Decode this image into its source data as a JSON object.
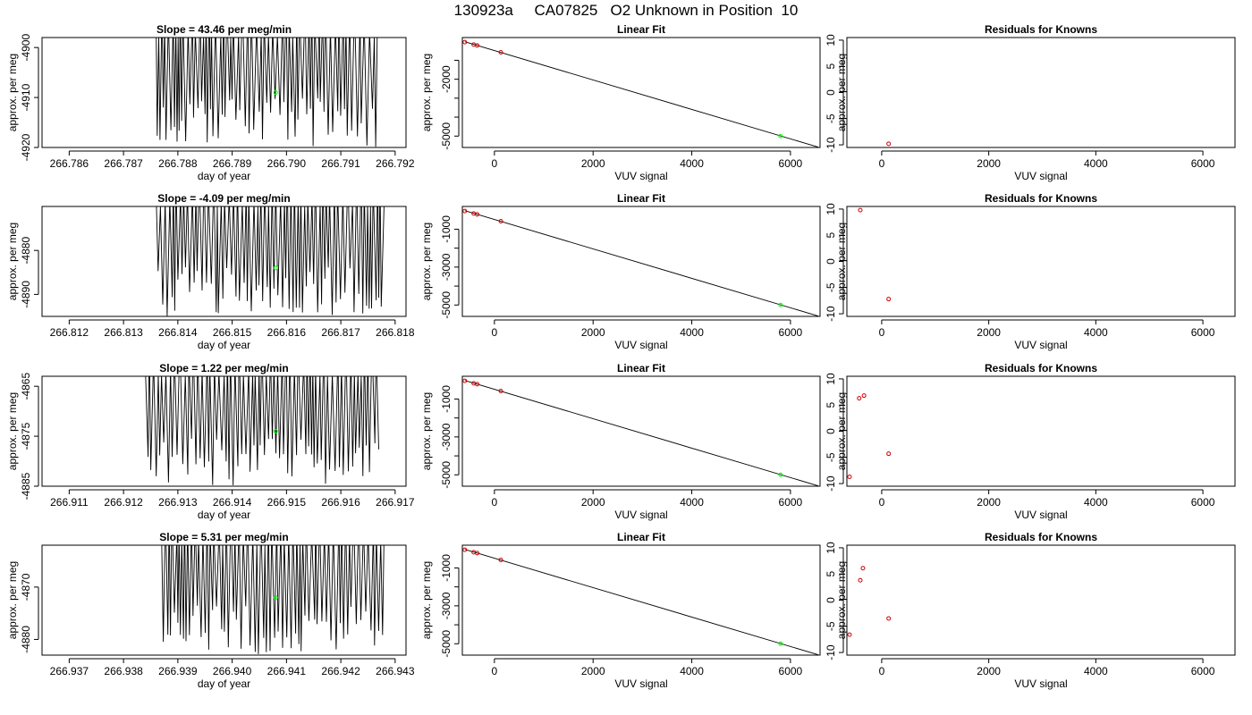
{
  "title": "130923a     CA07825   O2 Unknown in Position  10",
  "colors": {
    "axis": "#000000",
    "line": "#000000",
    "unknown_point": "#00ff00",
    "known_point": "#cc0000"
  },
  "chart_data": [
    {
      "type": "line",
      "title": "Slope =  43.46  per meg/min",
      "xlabel": "day of year",
      "ylabel": "approx. per meg",
      "xlim": [
        266.7855,
        266.7922
      ],
      "ylim": [
        -4920,
        -4898
      ],
      "xticks": [
        "266.786",
        "266.787",
        "266.788",
        "266.789",
        "266.790",
        "266.791",
        "266.792"
      ],
      "xtick_values": [
        266.786,
        266.787,
        266.788,
        266.789,
        266.79,
        266.791,
        266.792
      ],
      "yticks": [
        "-4920",
        "-4910",
        "-4900"
      ],
      "ytick_values": [
        -4920,
        -4910,
        -4900
      ],
      "trace_x_range": [
        266.7876,
        266.7917
      ],
      "trace_y_range": [
        -4920,
        -4898
      ],
      "trace_note": "dense oscillating signal",
      "unknown_point": {
        "x": 266.7898,
        "y": -4909
      }
    },
    {
      "type": "scatter",
      "title": "Linear Fit",
      "xlabel": "VUV signal",
      "ylabel": "approx. per meg",
      "xlim": [
        -650,
        6600
      ],
      "ylim": [
        -5600,
        200
      ],
      "xticks": [
        "0",
        "2000",
        "4000",
        "6000"
      ],
      "xtick_values": [
        0,
        2000,
        4000,
        6000
      ],
      "yticks": [
        "-2000",
        "-5000"
      ],
      "ytick_values": [
        -2000,
        -5000
      ],
      "minor_yticks": [
        -1000,
        -3000,
        -4000
      ],
      "fit_line": {
        "x": [
          -600,
          6560
        ],
        "y": [
          -20,
          -5580
        ]
      },
      "known_points": {
        "x": [
          -600,
          -420,
          -350,
          130
        ],
        "y": [
          -40,
          -170,
          -220,
          -580
        ]
      },
      "unknown_point": {
        "x": 5800,
        "y": -5000
      }
    },
    {
      "type": "scatter",
      "title": "Residuals for Knowns",
      "xlabel": "VUV signal",
      "ylabel": "approx. per meg",
      "xlim": [
        -650,
        6600
      ],
      "ylim": [
        -10.5,
        10.5
      ],
      "xticks": [
        "0",
        "2000",
        "4000",
        "6000"
      ],
      "xtick_values": [
        0,
        2000,
        4000,
        6000
      ],
      "yticks": [
        "-10",
        "-5",
        "0",
        "5",
        "10"
      ],
      "ytick_values": [
        -10,
        -5,
        0,
        5,
        10
      ],
      "known_points": {
        "x": [
          130
        ],
        "y": [
          -9.8
        ]
      }
    },
    {
      "type": "line",
      "title": "Slope =  -4.09  per meg/min",
      "xlabel": "day of year",
      "ylabel": "approx. per meg",
      "xlim": [
        266.8115,
        266.8182
      ],
      "ylim": [
        -4895,
        -4870
      ],
      "xticks": [
        "266.812",
        "266.813",
        "266.814",
        "266.815",
        "266.816",
        "266.817",
        "266.818"
      ],
      "xtick_values": [
        266.812,
        266.813,
        266.814,
        266.815,
        266.816,
        266.817,
        266.818
      ],
      "yticks": [
        "-4880",
        "-4890"
      ],
      "ytick_values": [
        -4880,
        -4890
      ],
      "trace_x_range": [
        266.8136,
        266.8178
      ],
      "trace_y_range": [
        -4895,
        -4870
      ],
      "trace_note": "dense oscillating signal",
      "unknown_point": {
        "x": 266.8158,
        "y": -4884
      }
    },
    {
      "type": "scatter",
      "title": "Linear Fit",
      "xlabel": "VUV signal",
      "ylabel": "approx. per meg",
      "xlim": [
        -650,
        6600
      ],
      "ylim": [
        -5600,
        200
      ],
      "xticks": [
        "0",
        "2000",
        "4000",
        "6000"
      ],
      "xtick_values": [
        0,
        2000,
        4000,
        6000
      ],
      "yticks": [
        "-1000",
        "-3000",
        "-5000"
      ],
      "ytick_values": [
        -1000,
        -3000,
        -5000
      ],
      "minor_yticks": [
        -2000,
        -4000
      ],
      "fit_line": {
        "x": [
          -600,
          6560
        ],
        "y": [
          -20,
          -5580
        ]
      },
      "known_points": {
        "x": [
          -600,
          -420,
          -350,
          130
        ],
        "y": [
          -40,
          -170,
          -220,
          -580
        ]
      },
      "unknown_point": {
        "x": 5800,
        "y": -5000
      }
    },
    {
      "type": "scatter",
      "title": "Residuals for Knowns",
      "xlabel": "VUV signal",
      "ylabel": "approx. per meg",
      "xlim": [
        -650,
        6600
      ],
      "ylim": [
        -10.5,
        10.5
      ],
      "xticks": [
        "0",
        "2000",
        "4000",
        "6000"
      ],
      "xtick_values": [
        0,
        2000,
        4000,
        6000
      ],
      "yticks": [
        "-10",
        "-5",
        "0",
        "5",
        "10"
      ],
      "ytick_values": [
        -10,
        -5,
        0,
        5,
        10
      ],
      "known_points": {
        "x": [
          -400,
          130
        ],
        "y": [
          9.8,
          -7.2
        ]
      }
    },
    {
      "type": "line",
      "title": "Slope =  1.22  per meg/min",
      "xlabel": "day of year",
      "ylabel": "approx. per meg",
      "xlim": [
        266.9105,
        266.9172
      ],
      "ylim": [
        -4885,
        -4863
      ],
      "xticks": [
        "266.911",
        "266.912",
        "266.913",
        "266.914",
        "266.915",
        "266.916",
        "266.917"
      ],
      "xtick_values": [
        266.911,
        266.912,
        266.913,
        266.914,
        266.915,
        266.916,
        266.917
      ],
      "yticks": [
        "-4885",
        "-4875",
        "-4865"
      ],
      "ytick_values": [
        -4885,
        -4875,
        -4865
      ],
      "trace_x_range": [
        266.9124,
        266.9167
      ],
      "trace_y_range": [
        -4885,
        -4863
      ],
      "trace_note": "dense oscillating signal",
      "unknown_point": {
        "x": 266.9148,
        "y": -4874
      }
    },
    {
      "type": "scatter",
      "title": "Linear Fit",
      "xlabel": "VUV signal",
      "ylabel": "approx. per meg",
      "xlim": [
        -650,
        6600
      ],
      "ylim": [
        -5600,
        200
      ],
      "xticks": [
        "0",
        "2000",
        "4000",
        "6000"
      ],
      "xtick_values": [
        0,
        2000,
        4000,
        6000
      ],
      "yticks": [
        "-1000",
        "-3000",
        "-5000"
      ],
      "ytick_values": [
        -1000,
        -3000,
        -5000
      ],
      "minor_yticks": [
        -2000,
        -4000
      ],
      "fit_line": {
        "x": [
          -600,
          6560
        ],
        "y": [
          -20,
          -5580
        ]
      },
      "known_points": {
        "x": [
          -600,
          -420,
          -350,
          130
        ],
        "y": [
          -40,
          -170,
          -220,
          -580
        ]
      },
      "unknown_point": {
        "x": 5800,
        "y": -5000
      }
    },
    {
      "type": "scatter",
      "title": "Residuals for Knowns",
      "xlabel": "VUV signal",
      "ylabel": "approx. per meg",
      "xlim": [
        -650,
        6600
      ],
      "ylim": [
        -10.5,
        10.5
      ],
      "xticks": [
        "0",
        "2000",
        "4000",
        "6000"
      ],
      "xtick_values": [
        0,
        2000,
        4000,
        6000
      ],
      "yticks": [
        "-10",
        "-5",
        "0",
        "5",
        "10"
      ],
      "ytick_values": [
        -10,
        -5,
        0,
        5,
        10
      ],
      "known_points": {
        "x": [
          -600,
          -420,
          -330,
          130
        ],
        "y": [
          -8.7,
          6.3,
          6.8,
          -4.3
        ]
      }
    },
    {
      "type": "line",
      "title": "Slope =  5.31  per meg/min",
      "xlabel": "day of year",
      "ylabel": "approx. per meg",
      "xlim": [
        266.9365,
        266.9432
      ],
      "ylim": [
        -4883,
        -4862
      ],
      "xticks": [
        "266.937",
        "266.938",
        "266.939",
        "266.940",
        "266.941",
        "266.942",
        "266.943"
      ],
      "xtick_values": [
        266.937,
        266.938,
        266.939,
        266.94,
        266.941,
        266.942,
        266.943
      ],
      "yticks": [
        "-4870",
        "-4880"
      ],
      "ytick_values": [
        -4870,
        -4880
      ],
      "trace_x_range": [
        266.9387,
        266.9428
      ],
      "trace_y_range": [
        -4883,
        -4862
      ],
      "trace_note": "dense oscillating signal",
      "unknown_point": {
        "x": 266.9408,
        "y": -4872
      }
    },
    {
      "type": "scatter",
      "title": "Linear Fit",
      "xlabel": "VUV signal",
      "ylabel": "approx. per meg",
      "xlim": [
        -650,
        6600
      ],
      "ylim": [
        -5600,
        200
      ],
      "xticks": [
        "0",
        "2000",
        "4000",
        "6000"
      ],
      "xtick_values": [
        0,
        2000,
        4000,
        6000
      ],
      "yticks": [
        "-1000",
        "-3000",
        "-5000"
      ],
      "ytick_values": [
        -1000,
        -3000,
        -5000
      ],
      "minor_yticks": [
        -2000,
        -4000
      ],
      "fit_line": {
        "x": [
          -600,
          6560
        ],
        "y": [
          -20,
          -5580
        ]
      },
      "known_points": {
        "x": [
          -600,
          -420,
          -350,
          130
        ],
        "y": [
          -40,
          -170,
          -220,
          -580
        ]
      },
      "unknown_point": {
        "x": 5800,
        "y": -5000
      }
    },
    {
      "type": "scatter",
      "title": "Residuals for Knowns",
      "xlabel": "VUV signal",
      "ylabel": "approx. per meg",
      "xlim": [
        -650,
        6600
      ],
      "ylim": [
        -10.5,
        10.5
      ],
      "xticks": [
        "0",
        "2000",
        "4000",
        "6000"
      ],
      "xtick_values": [
        0,
        2000,
        4000,
        6000
      ],
      "yticks": [
        "-10",
        "-5",
        "0",
        "5",
        "10"
      ],
      "ytick_values": [
        -10,
        -5,
        0,
        5,
        10
      ],
      "known_points": {
        "x": [
          -600,
          -400,
          -350,
          130
        ],
        "y": [
          -6.6,
          3.8,
          6.1,
          -3.5
        ]
      }
    }
  ]
}
